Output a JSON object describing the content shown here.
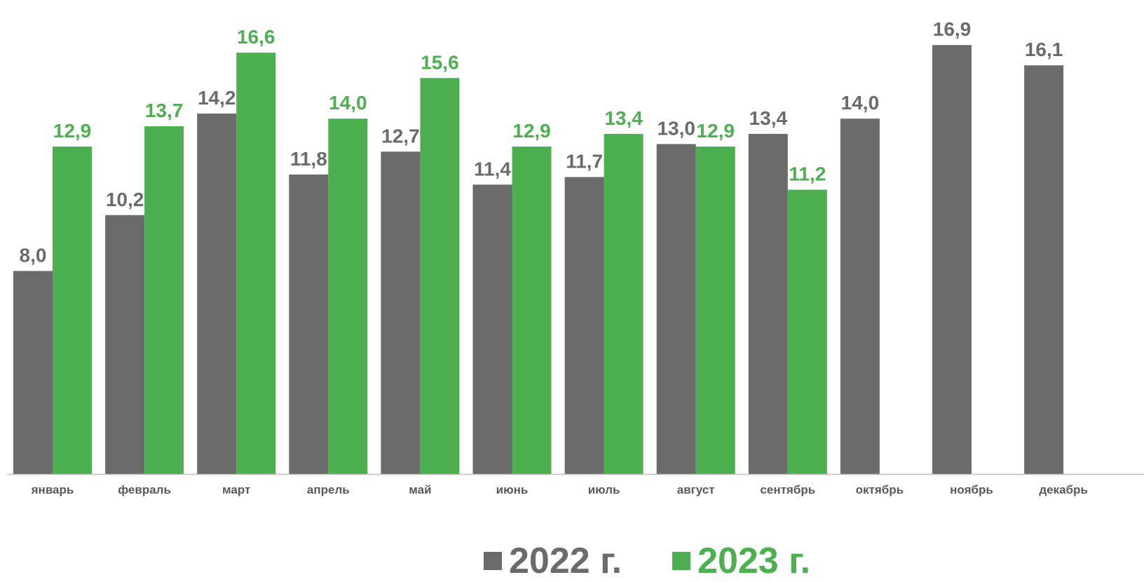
{
  "chart_data": {
    "type": "bar",
    "categories": [
      "январь",
      "февраль",
      "март",
      "апрель",
      "май",
      "июнь",
      "июль",
      "август",
      "сентябрь",
      "октябрь",
      "ноябрь",
      "декабрь"
    ],
    "series": [
      {
        "name": "2022 г.",
        "color": "#6b6b6b",
        "values": [
          8.0,
          10.2,
          14.2,
          11.8,
          12.7,
          11.4,
          11.7,
          13.0,
          13.4,
          14.0,
          16.9,
          16.1
        ],
        "labels": [
          "8,0",
          "10,2",
          "14,2",
          "11,8",
          "12,7",
          "11,4",
          "11,7",
          "13,0",
          "13,4",
          "14,0",
          "16,9",
          "16,1"
        ]
      },
      {
        "name": "2023 г.",
        "color": "#4caf50",
        "values": [
          12.9,
          13.7,
          16.6,
          14.0,
          15.6,
          12.9,
          13.4,
          12.9,
          11.2,
          null,
          null,
          null
        ],
        "labels": [
          "12,9",
          "13,7",
          "16,6",
          "14,0",
          "15,6",
          "12,9",
          "13,4",
          "12,9",
          "11,2",
          null,
          null,
          null
        ]
      }
    ],
    "title": "",
    "xlabel": "",
    "ylabel": "",
    "ylim": [
      0,
      18
    ],
    "grid": false,
    "legend_position": "bottom-center",
    "axis_color": "#bfbfbf",
    "category_label_color": "#595959"
  }
}
